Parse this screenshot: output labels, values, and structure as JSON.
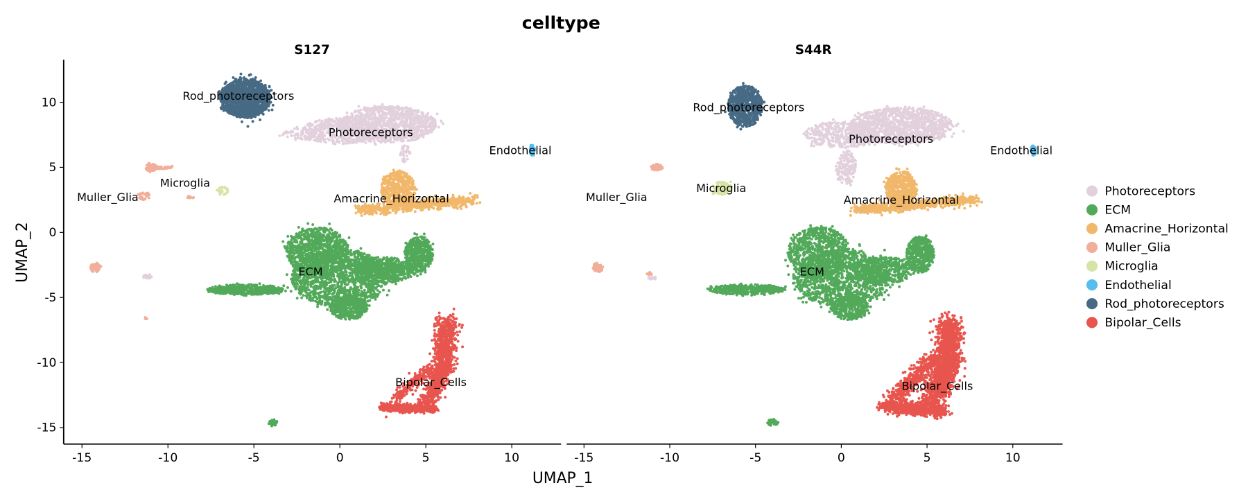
{
  "chart_data": {
    "type": "scatter",
    "title": "celltype",
    "xlabel": "UMAP_1",
    "ylabel": "UMAP_2",
    "xlim": [
      -16.1,
      12.9
    ],
    "ylim": [
      -16.2,
      13.3
    ],
    "xticks": [
      -15,
      -10,
      -5,
      0,
      5,
      10
    ],
    "yticks": [
      10,
      5,
      0,
      -5,
      -10,
      -15
    ],
    "grid": false,
    "legend_position": "right",
    "legend": [
      {
        "name": "Photoreceptors",
        "color": "#E2D1DD"
      },
      {
        "name": "ECM",
        "color": "#52A95A"
      },
      {
        "name": "Amacrine_Horizontal",
        "color": "#F1B86B"
      },
      {
        "name": "Muller_Glia",
        "color": "#F1AE9B"
      },
      {
        "name": "Microglia",
        "color": "#D6E4A6"
      },
      {
        "name": "Endothelial",
        "color": "#56BDEF"
      },
      {
        "name": "Rod_photoreceptors",
        "color": "#476A85"
      },
      {
        "name": "Bipolar_Cells",
        "color": "#E8554E"
      }
    ],
    "panels": [
      {
        "title": "S127",
        "labels": [
          {
            "text": "Rod_photoreceptors",
            "x": -5.9,
            "y": 10.2
          },
          {
            "text": "Photoreceptors",
            "x": 1.8,
            "y": 7.4
          },
          {
            "text": "Endothelial",
            "x": 10.5,
            "y": 6.0
          },
          {
            "text": "Microglia",
            "x": -9.0,
            "y": 3.5
          },
          {
            "text": "Muller_Glia",
            "x": -13.5,
            "y": 2.4
          },
          {
            "text": "Amacrine_Horizontal",
            "x": 3.0,
            "y": 2.3
          },
          {
            "text": "ECM",
            "x": -1.7,
            "y": -3.3
          },
          {
            "text": "Bipolar_Cells",
            "x": 5.3,
            "y": -11.8
          }
        ],
        "clusters": [
          {
            "type": "Rod_photoreceptors",
            "e": [
              [
                -5.5,
                10.3,
                1.45,
                1.5,
                1400
              ]
            ]
          },
          {
            "type": "Photoreceptors",
            "e": [
              [
                2.8,
                8.3,
                2.8,
                1.4,
                1100
              ],
              [
                0,
                7.8,
                2.2,
                1.0,
                400
              ],
              [
                -2.2,
                7.6,
                1.2,
                0.5,
                80
              ],
              [
                3.8,
                6.0,
                0.3,
                0.7,
                30
              ]
            ]
          },
          {
            "type": "Amacrine_Horizontal",
            "e": [
              [
                3.4,
                3.3,
                1.0,
                1.4,
                500
              ]
            ],
            "s": [
              [
                1.2,
                1.7,
                7.8,
                2.5,
                0.45,
                600
              ]
            ]
          },
          {
            "type": "ECM",
            "e": [
              [
                -1.3,
                -1.5,
                1.8,
                1.9,
                900
              ],
              [
                0,
                -3.5,
                2.8,
                2.2,
                1400
              ],
              [
                -5.5,
                -4.4,
                2.2,
                0.4,
                450
              ],
              [
                2.5,
                -2.9,
                1.8,
                1.0,
                500
              ],
              [
                4.6,
                -1.7,
                0.8,
                1.4,
                500
              ],
              [
                0.5,
                -5.8,
                1.1,
                0.9,
                400
              ],
              [
                -3.9,
                -14.6,
                0.25,
                0.25,
                30
              ]
            ]
          },
          {
            "type": "Bipolar_Cells",
            "s": [
              [
                6.2,
                -6.8,
                6.0,
                -10.5,
                0.7,
                600
              ],
              [
                6.0,
                -10.5,
                5.0,
                -13.3,
                0.6,
                400
              ],
              [
                5.2,
                -10.5,
                3.2,
                -12.8,
                0.4,
                200
              ],
              [
                2.5,
                -13.4,
                5.5,
                -13.6,
                0.35,
                450
              ]
            ]
          },
          {
            "type": "Muller_Glia",
            "e": [
              [
                -11.0,
                5.0,
                0.35,
                0.3,
                60
              ],
              [
                -14.2,
                -2.7,
                0.3,
                0.35,
                70
              ],
              [
                -11.4,
                2.8,
                0.35,
                0.3,
                30
              ],
              [
                -8.7,
                2.7,
                0.2,
                0.1,
                12
              ],
              [
                -11.3,
                -6.6,
                0.1,
                0.1,
                6
              ]
            ],
            "s": [
              [
                -10.7,
                4.9,
                -9.8,
                5.0,
                0.1,
                40
              ]
            ]
          },
          {
            "type": "Photoreceptors",
            "e": [
              [
                -11.2,
                -3.4,
                0.25,
                0.15,
                25
              ]
            ]
          },
          {
            "type": "Microglia",
            "e": [
              [
                -6.8,
                3.2,
                0.35,
                0.35,
                25
              ]
            ]
          },
          {
            "type": "Endothelial",
            "e": [
              [
                11.2,
                6.3,
                0.15,
                0.4,
                60
              ]
            ]
          }
        ]
      },
      {
        "title": "S44R",
        "labels": [
          {
            "text": "Rod_photoreceptors",
            "x": -5.4,
            "y": 9.3
          },
          {
            "text": "Photoreceptors",
            "x": 2.9,
            "y": 6.9
          },
          {
            "text": "Endothelial",
            "x": 10.5,
            "y": 6.0
          },
          {
            "text": "Microglia",
            "x": -7.0,
            "y": 3.1
          },
          {
            "text": "Muller_Glia",
            "x": -13.1,
            "y": 2.4
          },
          {
            "text": "Amacrine_Horizontal",
            "x": 3.5,
            "y": 2.2
          },
          {
            "text": "ECM",
            "x": -1.7,
            "y": -3.3
          },
          {
            "text": "Bipolar_Cells",
            "x": 5.6,
            "y": -12.1
          }
        ],
        "clusters": [
          {
            "type": "Rod_photoreceptors",
            "e": [
              [
                -5.6,
                9.7,
                1.0,
                1.6,
                700
              ]
            ]
          },
          {
            "type": "Photoreceptors",
            "e": [
              [
                3.5,
                8.2,
                3.0,
                1.4,
                1200
              ],
              [
                0,
                7.5,
                2.2,
                1.0,
                400
              ],
              [
                0.3,
                5.0,
                0.6,
                1.3,
                150
              ]
            ]
          },
          {
            "type": "Amacrine_Horizontal",
            "e": [
              [
                3.5,
                3.3,
                0.9,
                1.4,
                500
              ]
            ],
            "s": [
              [
                0.8,
                1.7,
                7.9,
                2.5,
                0.45,
                600
              ]
            ]
          },
          {
            "type": "ECM",
            "e": [
              [
                -1.3,
                -1.5,
                1.8,
                1.9,
                800
              ],
              [
                0,
                -3.5,
                2.8,
                2.2,
                1200
              ],
              [
                -5.5,
                -4.4,
                2.2,
                0.4,
                400
              ],
              [
                2.5,
                -2.9,
                1.8,
                1.0,
                450
              ],
              [
                4.6,
                -1.7,
                0.8,
                1.4,
                450
              ],
              [
                0.5,
                -5.8,
                1.1,
                0.9,
                350
              ],
              [
                -4.0,
                -14.6,
                0.3,
                0.25,
                40
              ]
            ]
          },
          {
            "type": "Bipolar_Cells",
            "s": [
              [
                6.3,
                -6.8,
                6.2,
                -10.5,
                0.8,
                800
              ],
              [
                6.2,
                -10.5,
                5.2,
                -13.2,
                0.8,
                600
              ],
              [
                5.5,
                -9.5,
                3.0,
                -13.0,
                0.6,
                500
              ],
              [
                2.5,
                -13.4,
                6.0,
                -13.7,
                0.5,
                700
              ]
            ]
          },
          {
            "type": "Muller_Glia",
            "e": [
              [
                -10.8,
                5.0,
                0.35,
                0.25,
                50
              ],
              [
                -14.2,
                -2.7,
                0.3,
                0.35,
                60
              ],
              [
                -11.2,
                -3.2,
                0.15,
                0.15,
                10
              ]
            ]
          },
          {
            "type": "Photoreceptors",
            "e": [
              [
                -11.0,
                -3.5,
                0.25,
                0.12,
                20
              ]
            ]
          },
          {
            "type": "Microglia",
            "e": [
              [
                -7.0,
                3.4,
                0.6,
                0.5,
                90
              ]
            ]
          },
          {
            "type": "Endothelial",
            "e": [
              [
                11.2,
                6.3,
                0.15,
                0.4,
                60
              ]
            ]
          }
        ]
      }
    ]
  }
}
